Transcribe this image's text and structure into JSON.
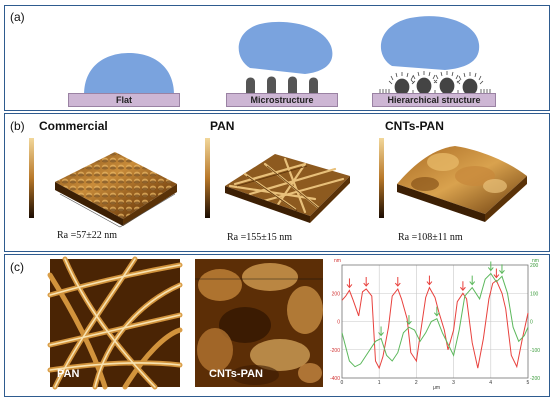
{
  "panel_a": {
    "label": "(a)",
    "substrates": [
      "Flat",
      "Microstructure",
      "Hierarchical structure"
    ]
  },
  "panel_b": {
    "label": "(b)",
    "titles": [
      "Commercial",
      "PAN",
      "CNTs-PAN"
    ],
    "ra": [
      "Ra =57±22 nm",
      "Ra =155±15 nm",
      "Ra =108±11 nm"
    ]
  },
  "panel_c": {
    "label": "(c)",
    "image_labels": [
      "PAN",
      "CNTs-PAN"
    ]
  },
  "chart_data": {
    "type": "line",
    "xlabel": "μm",
    "ylabel_left": "nm",
    "ylabel_right": "nm",
    "xlim": [
      0,
      5
    ],
    "ylim_left": [
      -400,
      400
    ],
    "ylim_right": [
      -200,
      200
    ],
    "xticks": [
      "0",
      "1",
      "2",
      "3",
      "4",
      "5"
    ],
    "yticks_left": [
      "200",
      "0",
      "-200",
      "-400"
    ],
    "yticks_right": [
      "200",
      "100",
      "0",
      "-100",
      "-200"
    ],
    "grid": true,
    "series": [
      {
        "color": "#e8413d",
        "axis": "left",
        "x": [
          0,
          0.1,
          0.2,
          0.3,
          0.45,
          0.55,
          0.65,
          0.8,
          0.9,
          1.0,
          1.1,
          1.25,
          1.35,
          1.5,
          1.6,
          1.75,
          1.85,
          2.0,
          2.1,
          2.25,
          2.35,
          2.5,
          2.6,
          2.75,
          2.85,
          3.0,
          3.1,
          3.25,
          3.35,
          3.5,
          3.65,
          3.8,
          3.95,
          4.05,
          4.15,
          4.3,
          4.4,
          4.55,
          4.7,
          4.85,
          5.0
        ],
        "y": [
          150,
          180,
          220,
          150,
          40,
          210,
          230,
          180,
          -280,
          -330,
          -250,
          -40,
          180,
          230,
          160,
          20,
          -220,
          -280,
          -100,
          170,
          240,
          170,
          70,
          -60,
          -200,
          -60,
          140,
          200,
          160,
          -150,
          -330,
          -120,
          160,
          270,
          290,
          200,
          90,
          -240,
          -320,
          -120,
          60
        ]
      },
      {
        "color": "#5cb85c",
        "axis": "right",
        "x": [
          0,
          0.1,
          0.2,
          0.35,
          0.5,
          0.7,
          0.9,
          1.05,
          1.2,
          1.35,
          1.5,
          1.65,
          1.8,
          1.95,
          2.1,
          2.25,
          2.4,
          2.55,
          2.7,
          2.85,
          3.0,
          3.15,
          3.3,
          3.5,
          3.7,
          3.85,
          4.0,
          4.15,
          4.3,
          4.45,
          4.6,
          4.75,
          4.9,
          5.0
        ],
        "y": [
          -40,
          -90,
          -140,
          -160,
          -150,
          -110,
          -70,
          -60,
          -120,
          -140,
          -110,
          -40,
          -20,
          -30,
          -70,
          -40,
          0,
          10,
          -40,
          -80,
          -120,
          -30,
          90,
          120,
          80,
          150,
          170,
          140,
          160,
          100,
          -20,
          -70,
          -50,
          -20
        ]
      }
    ],
    "annotations": [
      "red arrows mark peaks of red profile",
      "green arrows mark peaks of green profile"
    ]
  }
}
